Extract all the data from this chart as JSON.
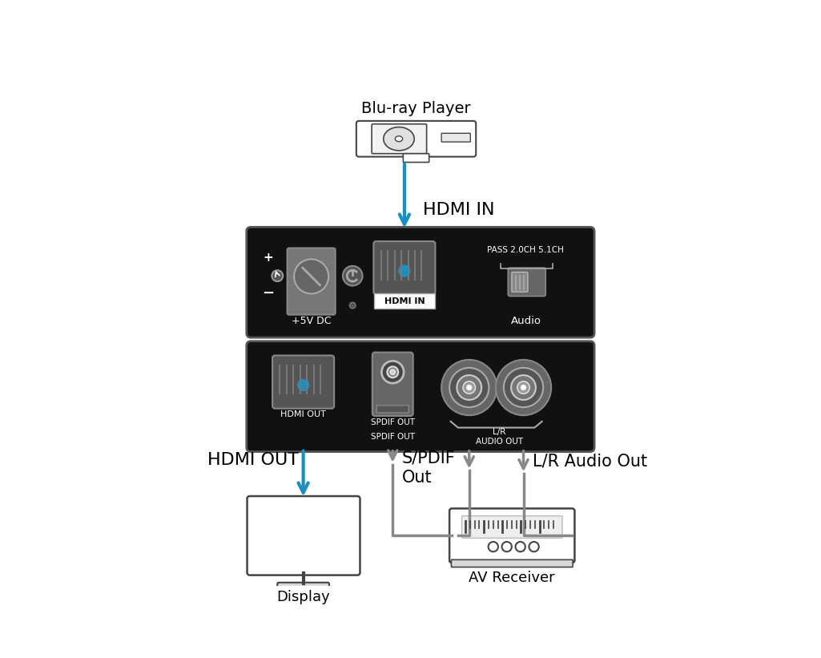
{
  "bg_color": "#ffffff",
  "blue_color": "#1a8fc1",
  "gray_wire": "#888888",
  "dark_gray": "#444444",
  "panel_bg": "#111111",
  "port_dark": "#555555",
  "port_mid": "#777777",
  "port_light": "#999999",
  "bluray_label": "Blu-ray Player",
  "hdmi_in_label": "HDMI IN",
  "hdmi_out_label": "HDMI OUT",
  "spdif_label": "S/PDIF\nOut",
  "lr_audio_label": "L/R Audio Out",
  "display_label": "Display",
  "av_label": "AV Receiver",
  "plus5v_label": "+5V DC",
  "audio_label": "Audio",
  "pass_label": "PASS 2.0CH 5.1CH",
  "hdmi_out_port_label": "HDMI OUT",
  "spdif_out_port_label": "SPDIF OUT",
  "lr_audio_out_label": "L/R\nAUDIO OUT"
}
